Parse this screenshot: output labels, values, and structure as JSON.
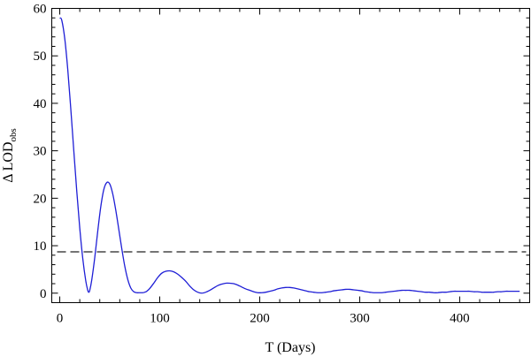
{
  "chart_data": {
    "type": "line",
    "title": "",
    "xlabel": "T (Days)",
    "ylabel_main": "Δ LOD",
    "ylabel_sub": "obs",
    "xlim": [
      -8,
      470
    ],
    "ylim": [
      -2,
      60
    ],
    "x_ticks": [
      0,
      100,
      200,
      300,
      400
    ],
    "y_ticks": [
      0,
      10,
      20,
      30,
      40,
      50,
      60
    ],
    "grid": false,
    "legend": "none",
    "series": [
      {
        "color": "#1f1fd6",
        "style": "solid",
        "x": [
          0,
          2,
          5,
          8,
          11,
          14,
          17,
          20,
          23,
          26,
          28,
          29,
          30,
          32,
          35,
          38,
          41,
          44,
          47,
          50,
          53,
          56,
          59,
          62,
          65,
          68,
          71,
          74,
          77,
          80,
          83,
          85,
          87,
          90,
          94,
          98,
          102,
          106,
          110,
          114,
          118,
          122,
          126,
          130,
          134,
          138,
          142,
          146,
          150,
          154,
          158,
          162,
          166,
          170,
          174,
          178,
          182,
          186,
          190,
          194,
          198,
          202,
          206,
          210,
          214,
          218,
          222,
          226,
          230,
          234,
          238,
          242,
          246,
          250,
          254,
          258,
          262,
          266,
          270,
          274,
          278,
          282,
          286,
          290,
          294,
          298,
          302,
          306,
          310,
          314,
          318,
          322,
          326,
          330,
          334,
          338,
          342,
          346,
          350,
          354,
          358,
          362,
          366,
          370,
          374,
          378,
          382,
          386,
          390,
          394,
          398,
          402,
          406,
          410,
          414,
          418,
          422,
          426,
          430,
          434,
          438,
          442,
          446,
          450,
          454,
          458,
          460
        ],
        "y": [
          58.0,
          57.5,
          53.6,
          47.1,
          38.9,
          30.1,
          21.5,
          13.7,
          7.3,
          2.6,
          0.6,
          0.2,
          0.6,
          2.8,
          7.5,
          13.1,
          18.2,
          21.8,
          23.3,
          23.0,
          20.9,
          17.5,
          13.5,
          9.4,
          5.7,
          2.9,
          1.1,
          0.3,
          0.1,
          0.1,
          0.1,
          0.2,
          0.4,
          1.0,
          2.1,
          3.3,
          4.2,
          4.6,
          4.7,
          4.5,
          4.0,
          3.3,
          2.5,
          1.5,
          0.7,
          0.2,
          0.0,
          0.2,
          0.6,
          1.1,
          1.6,
          1.9,
          2.1,
          2.1,
          2.0,
          1.7,
          1.3,
          0.9,
          0.6,
          0.3,
          0.1,
          0.1,
          0.2,
          0.4,
          0.6,
          0.9,
          1.1,
          1.2,
          1.2,
          1.1,
          0.9,
          0.7,
          0.5,
          0.3,
          0.2,
          0.1,
          0.1,
          0.2,
          0.3,
          0.5,
          0.6,
          0.7,
          0.8,
          0.8,
          0.7,
          0.6,
          0.5,
          0.3,
          0.2,
          0.1,
          0.1,
          0.1,
          0.2,
          0.3,
          0.4,
          0.5,
          0.6,
          0.6,
          0.6,
          0.5,
          0.4,
          0.3,
          0.2,
          0.2,
          0.1,
          0.1,
          0.2,
          0.2,
          0.3,
          0.4,
          0.4,
          0.4,
          0.4,
          0.4,
          0.3,
          0.3,
          0.2,
          0.2,
          0.2,
          0.2,
          0.3,
          0.3,
          0.4,
          0.4,
          0.4,
          0.4,
          0.4
        ]
      },
      {
        "color": "#222222",
        "style": "dashed",
        "x": [
          -8,
          470
        ],
        "y": [
          8.7,
          8.7
        ]
      }
    ]
  }
}
